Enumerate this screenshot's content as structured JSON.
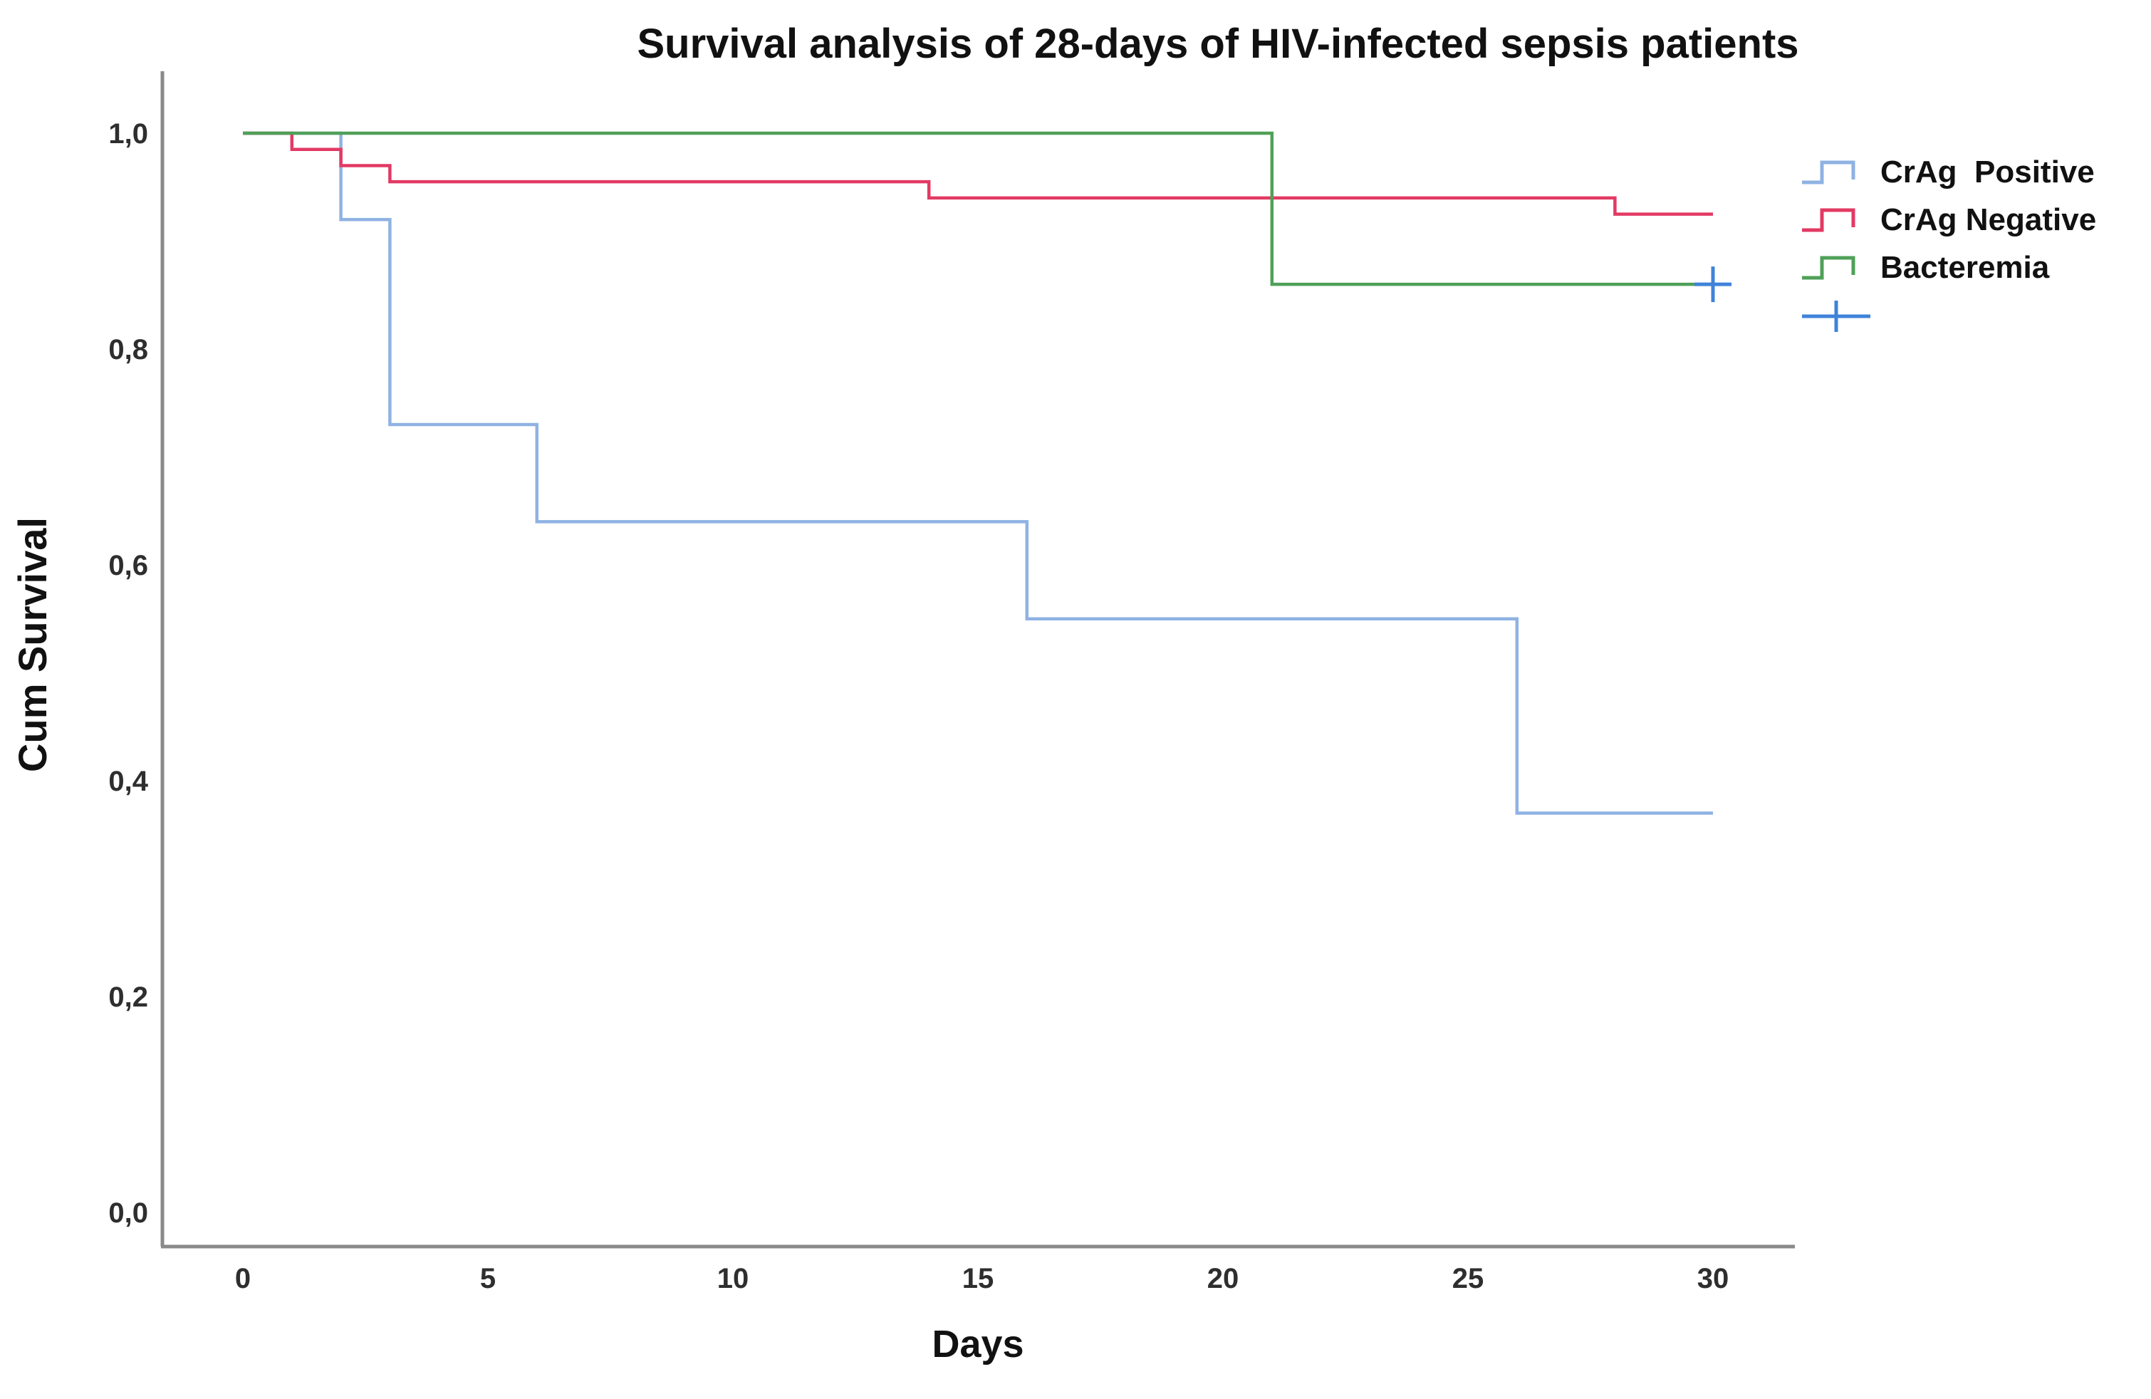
{
  "chart_data": {
    "type": "line",
    "subtype": "kaplan_meier_step",
    "title": "Survival analysis of 28-days of HIV-infected sepsis patients",
    "xlabel": "Days",
    "ylabel": "Cum Survival",
    "xlim": [
      0,
      30
    ],
    "ylim": [
      0.0,
      1.0
    ],
    "grid": false,
    "legend_position": "right",
    "x_ticks": [
      0,
      5,
      10,
      15,
      20,
      25,
      30
    ],
    "x_tick_labels": [
      "0",
      "5",
      "10",
      "15",
      "20",
      "25",
      "30"
    ],
    "y_ticks": [
      1.0,
      0.8,
      0.6,
      0.4,
      0.2,
      0.0
    ],
    "y_tick_labels": [
      "1,0",
      "0,8",
      "0,6",
      "0,4",
      "0,2",
      "0,0"
    ],
    "series": [
      {
        "name": "CrAg  Positive",
        "color": "#8FB2E3",
        "start_value": 1.0,
        "drops": [
          [
            2,
            0.92
          ],
          [
            3,
            0.73
          ],
          [
            6,
            0.64
          ],
          [
            16,
            0.55
          ],
          [
            26,
            0.37
          ]
        ],
        "end_day": 30,
        "censored": []
      },
      {
        "name": "CrAg Negative",
        "color": "#E23A64",
        "start_value": 1.0,
        "drops": [
          [
            1,
            0.985
          ],
          [
            2,
            0.97
          ],
          [
            3,
            0.955
          ],
          [
            14,
            0.94
          ],
          [
            28,
            0.925
          ]
        ],
        "end_day": 30,
        "censored": []
      },
      {
        "name": "Bacteremia",
        "color": "#4FA057",
        "start_value": 1.0,
        "drops": [
          [
            21,
            0.86
          ]
        ],
        "end_day": 30,
        "censored": [
          [
            30,
            0.86
          ]
        ]
      }
    ],
    "censor_marker_color": "#3F83D9",
    "axis_color": "#8A8A8A",
    "text_color": "#1C1C1C"
  }
}
